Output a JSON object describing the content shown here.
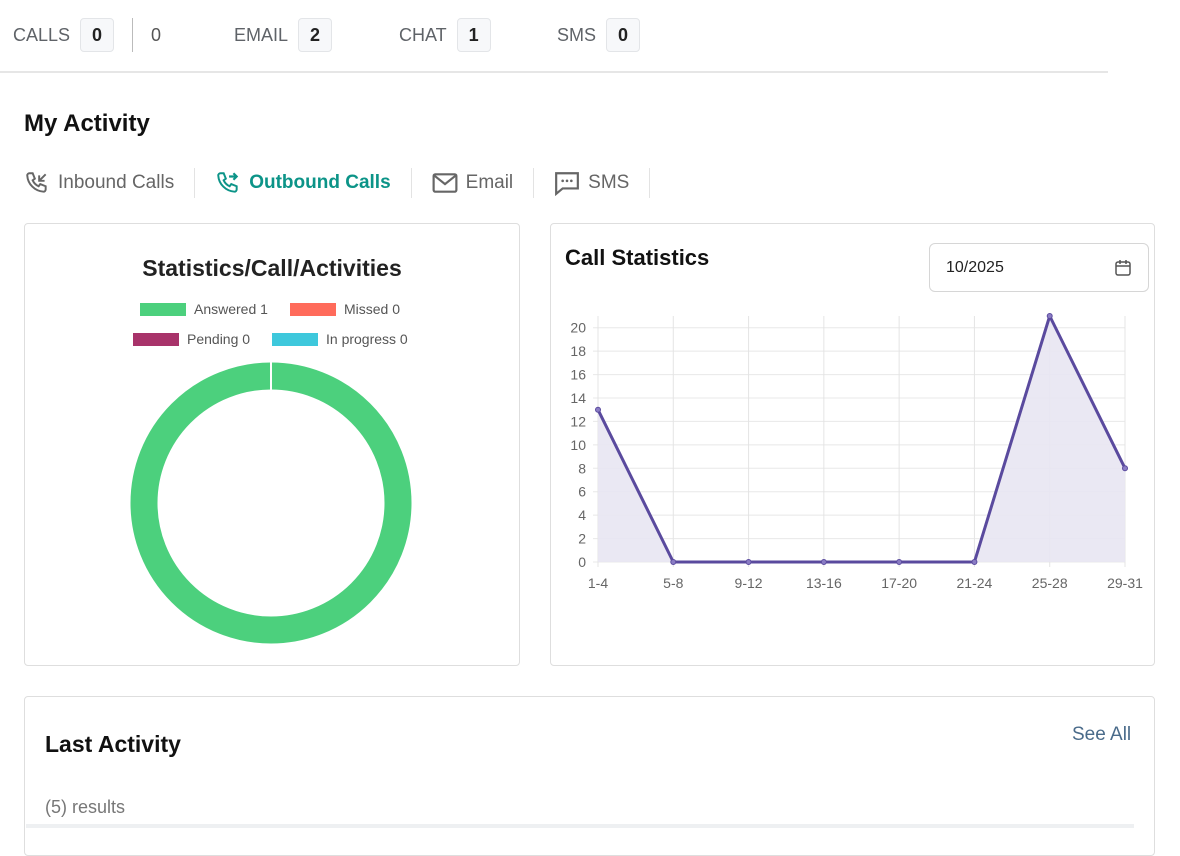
{
  "counters": [
    {
      "label": "CALLS",
      "value": "0",
      "extra": "0"
    },
    {
      "label": "EMAIL",
      "value": "2"
    },
    {
      "label": "CHAT",
      "value": "1"
    },
    {
      "label": "SMS",
      "value": "0"
    }
  ],
  "section_title": "My Activity",
  "tabs": [
    {
      "label": "Inbound Calls",
      "icon": "phone-inbound-icon",
      "active": false
    },
    {
      "label": "Outbound Calls",
      "icon": "phone-outbound-icon",
      "active": true
    },
    {
      "label": "Email",
      "icon": "envelope-icon",
      "active": false
    },
    {
      "label": "SMS",
      "icon": "chat-bubble-icon",
      "active": false
    }
  ],
  "colors": {
    "accent": "#0c9488",
    "answered": "#4cd07d",
    "missed": "#ff6b5b",
    "pending": "#a8336a",
    "in_progress": "#3ec8dc",
    "line": "#5a4a9e",
    "fill": "#e8e6f2"
  },
  "date_picker": {
    "value": "10/2025"
  },
  "last_activity": {
    "title": "Last Activity",
    "see_all": "See All",
    "results": "(5) results"
  },
  "chart_data": [
    {
      "type": "pie",
      "title": "Statistics/Call/Activities",
      "donut": true,
      "legend": [
        "Answered 1",
        "Missed 0",
        "Pending 0",
        "In progress 0"
      ],
      "slices": [
        {
          "name": "Answered",
          "value": 1
        },
        {
          "name": "Missed",
          "value": 0
        },
        {
          "name": "Pending",
          "value": 0
        },
        {
          "name": "In progress",
          "value": 0
        }
      ]
    },
    {
      "type": "area",
      "title": "Call Statistics",
      "categories": [
        "1-4",
        "5-8",
        "9-12",
        "13-16",
        "17-20",
        "21-24",
        "25-28",
        "29-31"
      ],
      "values": [
        13,
        0,
        0,
        0,
        0,
        0,
        21,
        8
      ],
      "ylim": [
        0,
        21
      ],
      "yticks": [
        0,
        2,
        4,
        6,
        8,
        10,
        12,
        14,
        16,
        18,
        20
      ],
      "grid": true
    }
  ]
}
